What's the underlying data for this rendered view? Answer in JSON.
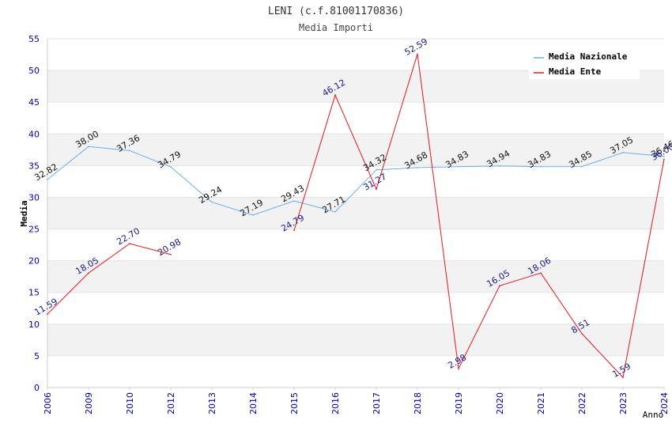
{
  "chart_data": {
    "type": "line",
    "title": "LENI (c.f.81001170836)",
    "subtitle": "Media Importi",
    "xlabel": "Anno",
    "ylabel": "Media",
    "ylim": [
      0,
      55
    ],
    "yticks": [
      0,
      5,
      10,
      15,
      20,
      25,
      30,
      35,
      40,
      45,
      50,
      55
    ],
    "grid": "horizontal alternating bands",
    "legend_position": "top-right",
    "categories": [
      "2006",
      "2009",
      "2010",
      "2012",
      "2013",
      "2014",
      "2015",
      "2016",
      "2017",
      "2018",
      "2019",
      "2020",
      "2021",
      "2022",
      "2023",
      "2024"
    ],
    "series": [
      {
        "name": "Media Nazionale",
        "color": "#6aaee6",
        "values": [
          32.82,
          38.0,
          37.36,
          34.79,
          29.24,
          27.19,
          29.43,
          27.71,
          34.32,
          34.68,
          34.83,
          34.94,
          34.83,
          34.85,
          37.05,
          36.46
        ],
        "labels": [
          "32.82",
          "38.00",
          "37.36",
          "34.79",
          "29.24",
          "27.19",
          "29.43",
          "27.71",
          "34.32",
          "34.68",
          "34.83",
          "34.94",
          "34.83",
          "34.85",
          "37.05",
          "36.46"
        ]
      },
      {
        "name": "Media Ente",
        "color": "#e8141b",
        "values": [
          11.59,
          18.05,
          22.7,
          20.98,
          null,
          null,
          24.79,
          46.12,
          31.27,
          52.59,
          2.98,
          16.05,
          18.06,
          8.51,
          1.59,
          36.0
        ],
        "labels": [
          "11.59",
          "18.05",
          "22.70",
          "20.98",
          null,
          null,
          "24.79",
          "46.12",
          "31.27",
          "52.59",
          "2.98",
          "16.05",
          "18.06",
          "8.51",
          "1.59",
          "36.00"
        ]
      }
    ]
  }
}
